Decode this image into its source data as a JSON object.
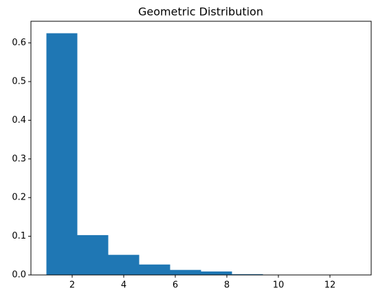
{
  "chart_data": {
    "type": "histogram",
    "title": "Geometric Distribution",
    "bins": [
      1,
      2.2,
      3.4,
      4.6,
      5.8,
      7.0,
      8.2,
      9.4,
      10.6,
      11.8,
      13
    ],
    "values": [
      0.625,
      0.103,
      0.052,
      0.027,
      0.013,
      0.009,
      0.002,
      0.0005,
      0.0002,
      0.0003
    ],
    "color": "#1f77b4",
    "xlim": [
      0.4,
      13.6
    ],
    "xticks": [
      2,
      4,
      6,
      8,
      10,
      12
    ],
    "ylim": [
      0,
      0.656
    ],
    "yticks": [
      {
        "value": 0,
        "label": "0.0"
      },
      0.1,
      0.2,
      0.3,
      0.4,
      0.5,
      0.6
    ],
    "grid": false
  }
}
